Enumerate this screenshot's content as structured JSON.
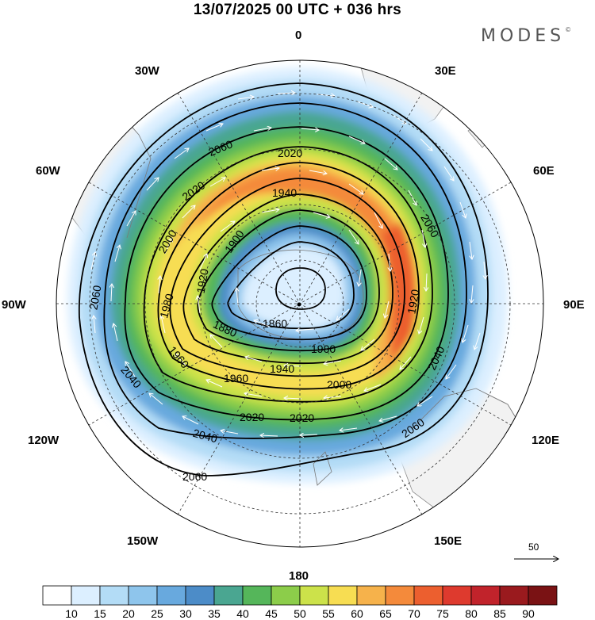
{
  "header": {
    "title": "13/07/2025  00 UTC  + 036 hrs",
    "brand": "MODES"
  },
  "map": {
    "projection": "south polar stereographic",
    "longitude_labels": [
      {
        "text": "0",
        "lon": 0
      },
      {
        "text": "30E",
        "lon": 30
      },
      {
        "text": "60E",
        "lon": 60
      },
      {
        "text": "90E",
        "lon": 90
      },
      {
        "text": "120E",
        "lon": 120
      },
      {
        "text": "150E",
        "lon": 150
      },
      {
        "text": "180",
        "lon": 180
      },
      {
        "text": "150W",
        "lon": -150
      },
      {
        "text": "120W",
        "lon": -120
      },
      {
        "text": "90W",
        "lon": -90
      },
      {
        "text": "60W",
        "lon": -60
      },
      {
        "text": "30W",
        "lon": -30
      }
    ],
    "contour_labels": [
      "2060",
      "2020",
      "2020",
      "1940",
      "2060",
      "2000",
      "1900",
      "1920",
      "1980",
      "2060",
      "1860",
      "1880",
      "1900",
      "1960",
      "1940",
      "1960",
      "2000",
      "1920",
      "2040",
      "2040",
      "2020",
      "2020",
      "2040",
      "2060",
      "2060"
    ],
    "colors": {
      "land": "#f2f2f2",
      "coast": "#888888",
      "grid": "#333333",
      "contour": "#000000",
      "vector": "#ffffff"
    }
  },
  "legend": {
    "levels": [
      "10",
      "15",
      "20",
      "25",
      "30",
      "35",
      "40",
      "45",
      "50",
      "55",
      "60",
      "65",
      "70",
      "75",
      "80",
      "85",
      "90"
    ],
    "colors": [
      "#ffffff",
      "#dcefff",
      "#b3dcf6",
      "#8ec5ec",
      "#68a9de",
      "#4c8cc8",
      "#4aa691",
      "#55b65a",
      "#8ccd4a",
      "#cce24a",
      "#f7dd52",
      "#f6b24b",
      "#f48a3b",
      "#ec5f2f",
      "#de3a2e",
      "#c1232b",
      "#9a1a1e",
      "#7a1214"
    ],
    "reference_vector": "50"
  }
}
